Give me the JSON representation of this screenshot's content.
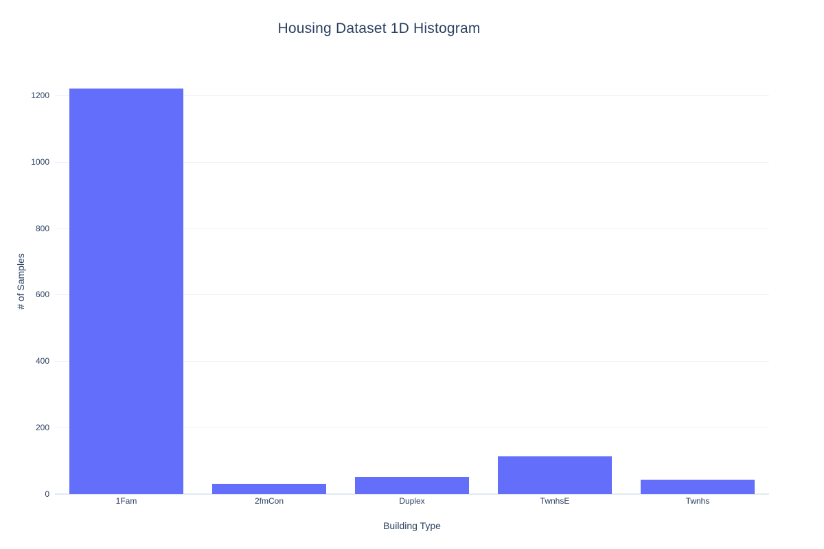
{
  "chart_data": {
    "type": "bar",
    "title": "Housing Dataset 1D Histogram",
    "xlabel": "Building Type",
    "ylabel": "# of Samples",
    "categories": [
      "1Fam",
      "2fmCon",
      "Duplex",
      "TwnhsE",
      "Twnhs"
    ],
    "values": [
      1220,
      31,
      52,
      114,
      43
    ],
    "ylim": [
      0,
      1280
    ],
    "yticks": [
      0,
      200,
      400,
      600,
      800,
      1000,
      1200
    ],
    "grid": true,
    "legend": "none",
    "colors": {
      "bar": "#636efa",
      "grid": "#ebf0f8",
      "zeroline": "#e3eaf2",
      "text": "#2a3f5f"
    }
  }
}
